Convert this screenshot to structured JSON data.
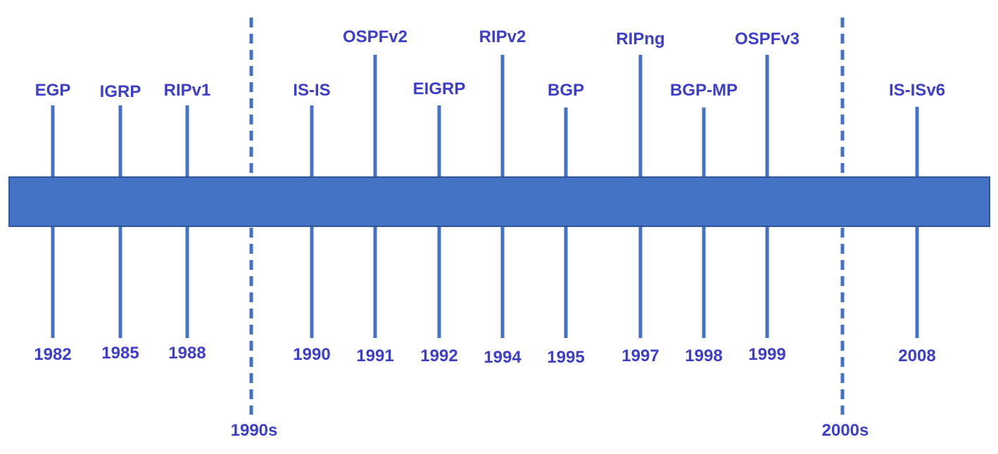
{
  "colors": {
    "bar_fill": "#4472C4",
    "bar_stroke": "#2F5597",
    "line": "#4472C4",
    "text": "#3D3FCB",
    "background": "#FFFFFF"
  },
  "events": [
    {
      "protocol": "EGP",
      "year": "1982"
    },
    {
      "protocol": "IGRP",
      "year": "1985"
    },
    {
      "protocol": "RIPv1",
      "year": "1988"
    },
    {
      "protocol": "IS-IS",
      "year": "1990"
    },
    {
      "protocol": "OSPFv2",
      "year": "1991"
    },
    {
      "protocol": "EIGRP",
      "year": "1992"
    },
    {
      "protocol": "RIPv2",
      "year": "1994"
    },
    {
      "protocol": "BGP",
      "year": "1995"
    },
    {
      "protocol": "RIPng",
      "year": "1997"
    },
    {
      "protocol": "BGP-MP",
      "year": "1998"
    },
    {
      "protocol": "OSPFv3",
      "year": "1999"
    },
    {
      "protocol": "IS-ISv6",
      "year": "2008"
    }
  ],
  "decades": [
    {
      "label": "1990s"
    },
    {
      "label": "2000s"
    }
  ]
}
